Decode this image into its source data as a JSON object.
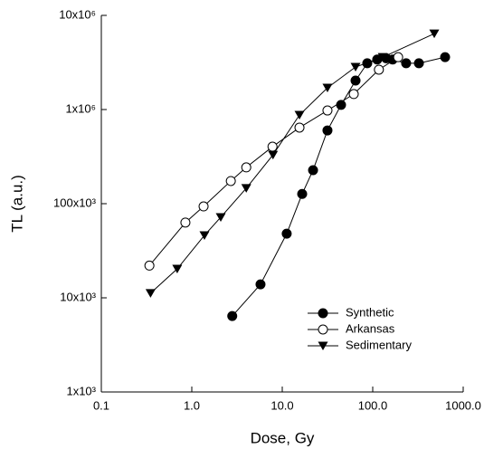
{
  "chart_data": {
    "type": "scatter-line",
    "xlabel": "Dose, Gy",
    "ylabel": "TL (a.u.)",
    "xscale": "log",
    "yscale": "log",
    "xlim": [
      0.1,
      1000
    ],
    "ylim": [
      1000,
      10000000
    ],
    "xticks": [
      {
        "value": 0.1,
        "label": "0.1"
      },
      {
        "value": 1,
        "label": "1.0"
      },
      {
        "value": 10,
        "label": "10.0"
      },
      {
        "value": 100,
        "label": "100.0"
      },
      {
        "value": 1000,
        "label": "1000.0"
      }
    ],
    "yticks": [
      {
        "value": 1000,
        "label": "1x10³"
      },
      {
        "value": 10000,
        "label": "10x10³"
      },
      {
        "value": 100000,
        "label": "100x10³"
      },
      {
        "value": 1000000,
        "label": "1x10⁶"
      },
      {
        "value": 10000000,
        "label": "10x10⁶"
      }
    ],
    "legend": "lower right",
    "series": [
      {
        "name": "Synthetic",
        "color": "#000000",
        "marker": "circle-filled",
        "x": [
          2.8,
          5.75,
          11.2,
          16.6,
          21.9,
          31.6,
          44.7,
          64.6,
          87,
          112,
          141,
          166,
          234,
          324,
          631
        ],
        "values": [
          6400,
          13900,
          48000,
          127000,
          227000,
          600000,
          1120000,
          2030000,
          3100000,
          3400000,
          3500000,
          3400000,
          3100000,
          3100000,
          3600000
        ]
      },
      {
        "name": "Arkansas",
        "color": "#000000",
        "marker": "circle-open",
        "x": [
          0.34,
          0.85,
          1.35,
          2.7,
          4.0,
          7.8,
          15.5,
          31.6,
          61.7,
          117,
          191
        ],
        "values": [
          22000,
          63000,
          93500,
          174000,
          243000,
          403000,
          643000,
          977000,
          1460000,
          2650000,
          3600000
        ]
      },
      {
        "name": "Sedimentary",
        "color": "#000000",
        "marker": "triangle-down",
        "x": [
          0.35,
          0.69,
          1.38,
          2.09,
          4.0,
          7.9,
          15.5,
          31.6,
          64.6,
          129,
          479
        ],
        "values": [
          11200,
          20300,
          46100,
          71800,
          146000,
          330000,
          875000,
          1700000,
          2830000,
          3600000,
          6400000
        ]
      }
    ]
  }
}
